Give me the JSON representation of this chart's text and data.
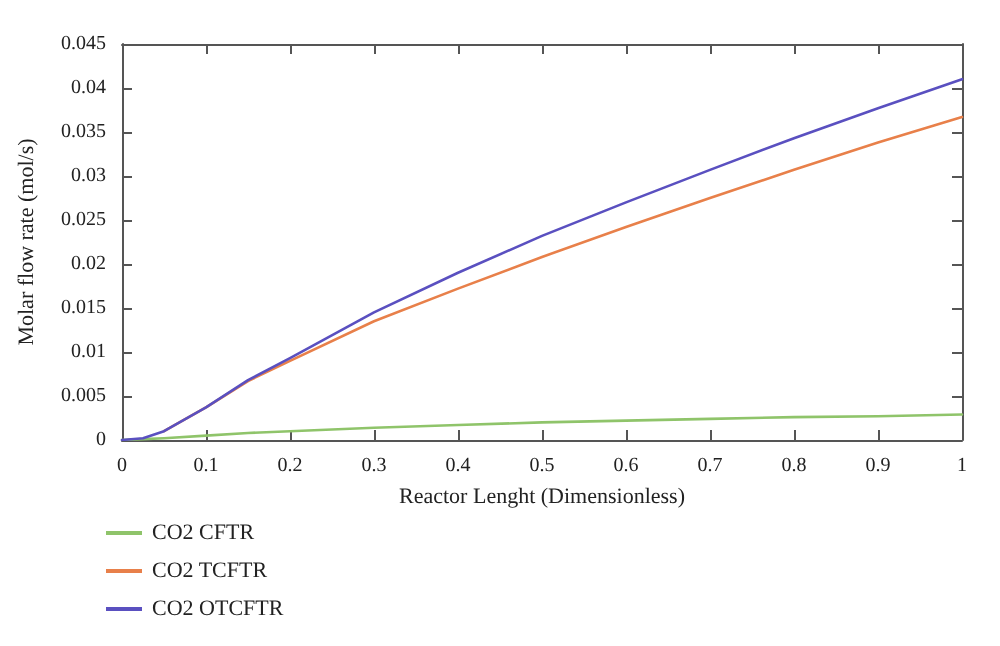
{
  "chart_data": {
    "type": "line",
    "xlabel": "Reactor Lenght (Dimensionless)",
    "ylabel": "Molar flow rate (mol/s)",
    "x": [
      0,
      0.025,
      0.05,
      0.1,
      0.15,
      0.2,
      0.3,
      0.4,
      0.5,
      0.6,
      0.7,
      0.8,
      0.9,
      1
    ],
    "series": [
      {
        "name": "CO2 CFTR",
        "color": "#8fc46a",
        "values": [
          0,
          0.0001,
          0.0002,
          0.0005,
          0.0008,
          0.001,
          0.0014,
          0.0017,
          0.002,
          0.0022,
          0.0024,
          0.0026,
          0.0027,
          0.0029
        ]
      },
      {
        "name": "CO2 TCFTR",
        "color": "#e8804a",
        "values": [
          null,
          null,
          0.001,
          0.0037,
          0.0067,
          0.009,
          0.0135,
          0.0172,
          0.0208,
          0.0242,
          0.0275,
          0.0307,
          0.0338,
          0.0367
        ]
      },
      {
        "name": "CO2 OTCFTR",
        "color": "#5a50c0",
        "values": [
          0,
          0.0002,
          0.001,
          0.0037,
          0.0068,
          0.0093,
          0.0145,
          0.019,
          0.0232,
          0.027,
          0.0307,
          0.0343,
          0.0377,
          0.041
        ]
      }
    ],
    "xlim": [
      0,
      1
    ],
    "xticks": [
      0,
      0.1,
      0.2,
      0.3,
      0.4,
      0.5,
      0.6,
      0.7,
      0.8,
      0.9,
      1
    ],
    "ylim": [
      0,
      0.045
    ],
    "yticks": [
      0,
      0.005,
      0.01,
      0.015,
      0.02,
      0.025,
      0.03,
      0.035,
      0.04,
      0.045
    ],
    "grid": false,
    "legend": "bottom left",
    "marker": "none",
    "line_style": "solid"
  }
}
